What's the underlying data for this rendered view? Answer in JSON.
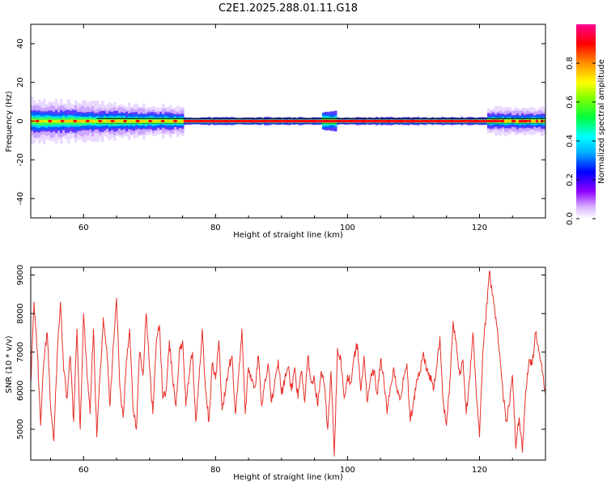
{
  "page_title": "C2E1.2025.288.01.11.G18",
  "chart_data": [
    {
      "type": "heatmap",
      "title": "C2E1.2025.288.01.11.G18",
      "xlabel": "Height of straight line (km)",
      "ylabel": "Frequency (Hz)",
      "xlim": [
        52,
        130
      ],
      "ylim": [
        -50,
        50
      ],
      "xticks": [
        60,
        80,
        100,
        120
      ],
      "yticks": [
        -40,
        -20,
        0,
        20,
        40
      ],
      "xtick_labels": [
        "60",
        "80",
        "100",
        "120"
      ],
      "ytick_labels": [
        "-40",
        "-20",
        "0",
        "20",
        "40"
      ],
      "dominant_frequency_hz": 0,
      "band_description": "Narrow high-amplitude band near 0 Hz across the full height range, noisier and wider below ~75 km",
      "colorbar": {
        "label": "Normalized spectral amplitude",
        "range": [
          0.0,
          1.0
        ],
        "ticks": [
          0.0,
          0.2,
          0.4,
          0.6,
          0.8
        ],
        "tick_labels": [
          "0.0",
          "0.2",
          "0.4",
          "0.6",
          "0.8"
        ],
        "colors": [
          "#ffffff",
          "#b000ff",
          "#0000ff",
          "#00ffff",
          "#00ff00",
          "#ffff00",
          "#ff8000",
          "#ff0000",
          "#ff0080"
        ]
      }
    },
    {
      "type": "line",
      "xlabel": "Height of straight line (km)",
      "ylabel": "SNR (10 * v/v)",
      "xlim": [
        52,
        130
      ],
      "ylim": [
        4200,
        9200
      ],
      "xticks": [
        60,
        80,
        100,
        120
      ],
      "yticks": [
        5000,
        6000,
        7000,
        8000,
        9000
      ],
      "xtick_labels": [
        "60",
        "80",
        "100",
        "120"
      ],
      "ytick_labels": [
        "5000",
        "6000",
        "7000",
        "8000",
        "9000"
      ],
      "series": [
        {
          "name": "SNR",
          "color": "#e8302a",
          "x": [
            52,
            52.5,
            53,
            53.5,
            54,
            54.5,
            55,
            55.5,
            56,
            56.5,
            57,
            57.5,
            58,
            58.5,
            59,
            59.5,
            60,
            60.5,
            61,
            61.5,
            62,
            62.5,
            63,
            63.5,
            64,
            64.5,
            65,
            65.5,
            66,
            66.5,
            67,
            67.5,
            68,
            68.5,
            69,
            69.5,
            70,
            70.5,
            71,
            71.5,
            72,
            72.5,
            73,
            73.5,
            74,
            74.5,
            75,
            75.5,
            76,
            76.5,
            77,
            77.5,
            78,
            78.5,
            79,
            79.5,
            80,
            80.5,
            81,
            81.5,
            82,
            82.5,
            83,
            83.5,
            84,
            84.5,
            85,
            85.5,
            86,
            86.5,
            87,
            87.5,
            88,
            88.5,
            89,
            89.5,
            90,
            90.5,
            91,
            91.5,
            92,
            92.5,
            93,
            93.5,
            94,
            94.5,
            95,
            95.5,
            96,
            96.5,
            97,
            97.5,
            98,
            98.5,
            99,
            99.5,
            100,
            100.5,
            101,
            101.5,
            102,
            102.5,
            103,
            103.5,
            104,
            104.5,
            105,
            105.5,
            106,
            106.5,
            107,
            107.5,
            108,
            108.5,
            109,
            109.5,
            110,
            110.5,
            111,
            111.5,
            112,
            112.5,
            113,
            113.5,
            114,
            114.5,
            115,
            115.5,
            116,
            116.5,
            117,
            117.5,
            118,
            118.5,
            119,
            119.5,
            120,
            120.5,
            121,
            121.5,
            122,
            122.5,
            123,
            123.5,
            124,
            124.5,
            125,
            125.5,
            126,
            126.5,
            127,
            127.5,
            128,
            128.5,
            129,
            129.5,
            130
          ],
          "values": [
            6200,
            8300,
            7000,
            5100,
            6800,
            7500,
            5600,
            4700,
            6900,
            8300,
            6500,
            5800,
            6900,
            5200,
            7600,
            5000,
            8000,
            6500,
            5400,
            7600,
            4800,
            6400,
            7900,
            7100,
            5600,
            7200,
            8400,
            6100,
            5300,
            6800,
            7600,
            5500,
            5000,
            7000,
            6400,
            8000,
            6600,
            5400,
            7200,
            7700,
            5800,
            6000,
            7300,
            6300,
            5600,
            7000,
            7300,
            5600,
            6400,
            7000,
            5200,
            6300,
            7600,
            6000,
            5200,
            6700,
            6300,
            7300,
            5500,
            6000,
            6600,
            6900,
            5400,
            6400,
            7600,
            5400,
            6600,
            6300,
            6100,
            6900,
            5600,
            6300,
            6700,
            5700,
            6300,
            6800,
            5900,
            6300,
            6600,
            6000,
            6600,
            5800,
            6500,
            5700,
            6900,
            6200,
            6300,
            5600,
            6500,
            6100,
            5000,
            6500,
            4300,
            7100,
            6800,
            5800,
            6400,
            6200,
            6900,
            7200,
            6000,
            6900,
            5700,
            6300,
            6500,
            5900,
            6800,
            6300,
            5400,
            6100,
            6600,
            6000,
            5800,
            6300,
            6700,
            5200,
            5700,
            6300,
            6500,
            7000,
            6500,
            6400,
            6000,
            6600,
            7400,
            5700,
            5100,
            6200,
            7800,
            7200,
            6400,
            6800,
            5400,
            6300,
            7500,
            6000,
            4800,
            7000,
            8000,
            9100,
            8500,
            7900,
            7000,
            6100,
            5200,
            5600,
            6400,
            4500,
            5300,
            4400,
            6000,
            6800,
            6700,
            7500,
            7000,
            6500,
            5900
          ]
        }
      ]
    }
  ]
}
